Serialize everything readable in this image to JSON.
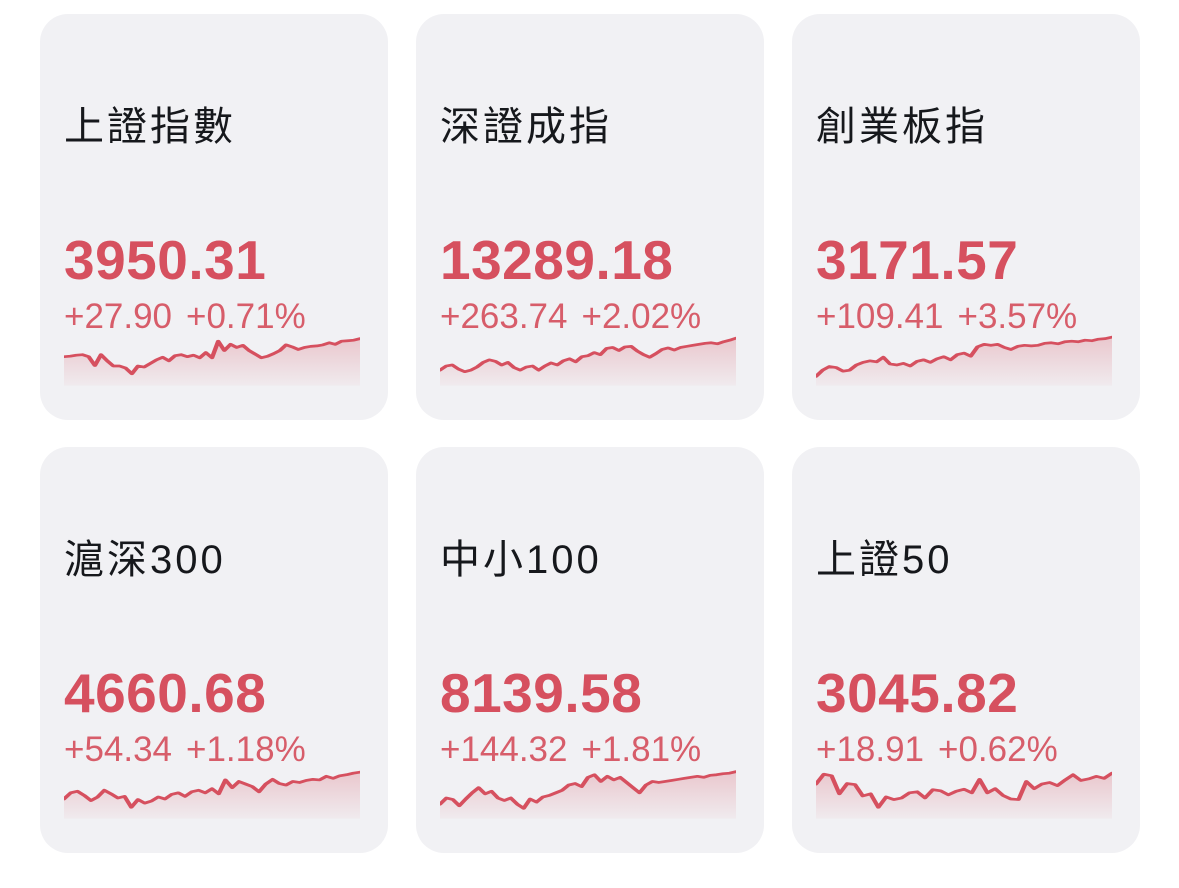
{
  "accent_color": "#d6505f",
  "card_background": "#f1f1f4",
  "title_color": "#16181c",
  "cards": [
    {
      "name": "上證指數",
      "price": "3950.31",
      "change": "+27.90",
      "change_pct": "+0.71%",
      "trend": "up",
      "spark": [
        44,
        43,
        41,
        40,
        44,
        61,
        40,
        52,
        62,
        62,
        66,
        77,
        62,
        64,
        57,
        50,
        45,
        52,
        42,
        40,
        44,
        41,
        46,
        36,
        46,
        14,
        32,
        20,
        26,
        22,
        32,
        39,
        46,
        43,
        38,
        32,
        21,
        25,
        30,
        26,
        24,
        23,
        21,
        17,
        20,
        14,
        13,
        12,
        9
      ]
    },
    {
      "name": "深證成指",
      "price": "13289.18",
      "change": "+263.74",
      "change_pct": "+2.02%",
      "trend": "up",
      "spark": [
        70,
        62,
        60,
        68,
        73,
        70,
        64,
        55,
        50,
        53,
        60,
        55,
        65,
        70,
        64,
        62,
        70,
        62,
        56,
        60,
        52,
        48,
        54,
        44,
        42,
        36,
        40,
        28,
        26,
        32,
        25,
        24,
        33,
        40,
        45,
        38,
        30,
        27,
        31,
        26,
        24,
        22,
        20,
        18,
        17,
        19,
        15,
        12,
        8
      ]
    },
    {
      "name": "創業板指",
      "price": "3171.57",
      "change": "+109.41",
      "change_pct": "+3.57%",
      "trend": "up",
      "spark": [
        82,
        70,
        63,
        65,
        72,
        70,
        60,
        55,
        52,
        54,
        45,
        58,
        60,
        57,
        62,
        53,
        50,
        55,
        48,
        44,
        50,
        40,
        37,
        43,
        25,
        20,
        22,
        20,
        26,
        30,
        24,
        22,
        23,
        22,
        18,
        17,
        19,
        15,
        14,
        15,
        12,
        13,
        10,
        9,
        6
      ]
    },
    {
      "name": "滬深300",
      "price": "4660.68",
      "change": "+54.34",
      "change_pct": "+1.18%",
      "trend": "up",
      "spark": [
        62,
        50,
        47,
        55,
        65,
        58,
        45,
        52,
        60,
        57,
        78,
        63,
        70,
        66,
        58,
        62,
        53,
        50,
        57,
        48,
        45,
        50,
        42,
        52,
        25,
        40,
        28,
        33,
        38,
        48,
        33,
        24,
        32,
        35,
        28,
        30,
        26,
        24,
        25,
        18,
        22,
        17,
        15,
        12,
        10
      ]
    },
    {
      "name": "中小100",
      "price": "8139.58",
      "change": "+144.32",
      "change_pct": "+1.81%",
      "trend": "up",
      "spark": [
        72,
        60,
        63,
        75,
        62,
        50,
        40,
        52,
        47,
        60,
        65,
        60,
        72,
        80,
        62,
        68,
        58,
        55,
        50,
        45,
        35,
        32,
        38,
        20,
        15,
        28,
        18,
        25,
        20,
        30,
        40,
        50,
        35,
        28,
        30,
        28,
        26,
        24,
        22,
        20,
        18,
        20,
        16,
        15,
        13,
        12,
        9
      ]
    },
    {
      "name": "上證50",
      "price": "3045.82",
      "change": "+18.91",
      "change_pct": "+0.62%",
      "trend": "up",
      "spark": [
        33,
        14,
        17,
        52,
        32,
        34,
        56,
        52,
        78,
        58,
        63,
        60,
        50,
        48,
        60,
        44,
        46,
        54,
        47,
        43,
        50,
        24,
        50,
        42,
        55,
        62,
        63,
        28,
        42,
        33,
        30,
        36,
        25,
        15,
        26,
        23,
        18,
        22,
        12
      ]
    }
  ]
}
